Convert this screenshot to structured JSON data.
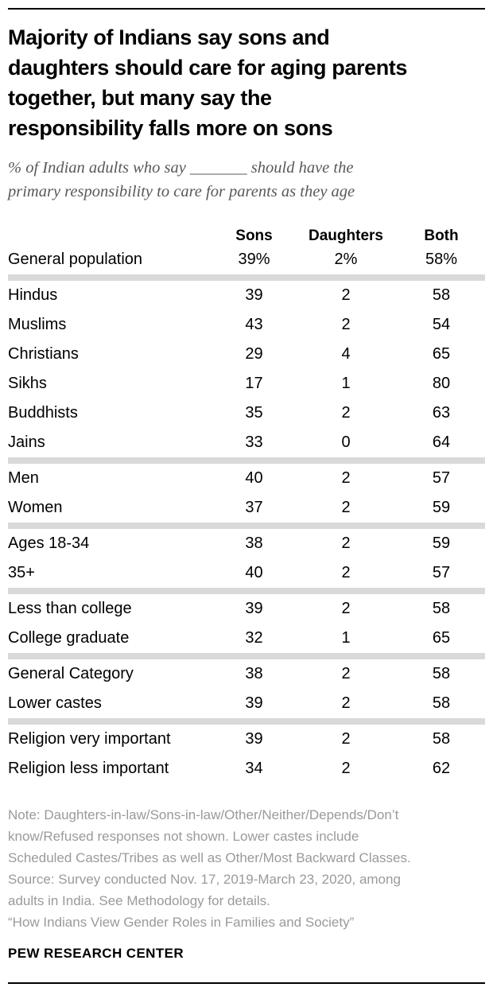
{
  "colors": {
    "text": "#000000",
    "subtitle_gray": "#595959",
    "note_gray": "#9a9a9a",
    "separator_gray": "#d9d9d9",
    "rule_black": "#000000",
    "background": "#ffffff"
  },
  "header": {
    "title_lines": [
      "Majority of Indians say sons and",
      "daughters should care for aging parents",
      "together, but many say the",
      "responsibility falls more on sons"
    ],
    "subtitle_lines": [
      "% of Indian adults who say _______ should have the",
      "primary responsibility to care for parents as they age"
    ]
  },
  "table": {
    "column_headers": [
      "Sons",
      "Daughters",
      "Both"
    ],
    "groups": [
      {
        "rows": [
          {
            "label": "General population",
            "values": [
              "39%",
              "2%",
              "58%"
            ]
          }
        ]
      },
      {
        "rows": [
          {
            "label": "Hindus",
            "values": [
              "39",
              "2",
              "58"
            ]
          },
          {
            "label": "Muslims",
            "values": [
              "43",
              "2",
              "54"
            ]
          },
          {
            "label": "Christians",
            "values": [
              "29",
              "4",
              "65"
            ]
          },
          {
            "label": "Sikhs",
            "values": [
              "17",
              "1",
              "80"
            ]
          },
          {
            "label": "Buddhists",
            "values": [
              "35",
              "2",
              "63"
            ]
          },
          {
            "label": "Jains",
            "values": [
              "33",
              "0",
              "64"
            ]
          }
        ]
      },
      {
        "rows": [
          {
            "label": "Men",
            "values": [
              "40",
              "2",
              "57"
            ]
          },
          {
            "label": "Women",
            "values": [
              "37",
              "2",
              "59"
            ]
          }
        ]
      },
      {
        "rows": [
          {
            "label": "Ages 18-34",
            "values": [
              "38",
              "2",
              "59"
            ]
          },
          {
            "label": "35+",
            "values": [
              "40",
              "2",
              "57"
            ]
          }
        ]
      },
      {
        "rows": [
          {
            "label": "Less than college",
            "values": [
              "39",
              "2",
              "58"
            ]
          },
          {
            "label": "College graduate",
            "values": [
              "32",
              "1",
              "65"
            ]
          }
        ]
      },
      {
        "rows": [
          {
            "label": "General Category",
            "values": [
              "38",
              "2",
              "58"
            ]
          },
          {
            "label": "Lower castes",
            "values": [
              "39",
              "2",
              "58"
            ]
          }
        ]
      },
      {
        "rows": [
          {
            "label": "Religion very important",
            "values": [
              "39",
              "2",
              "58"
            ]
          },
          {
            "label": "Religion less important",
            "values": [
              "34",
              "2",
              "62"
            ]
          }
        ]
      }
    ]
  },
  "footer": {
    "note_lines": [
      "Note: Daughters-in-law/Sons-in-law/Other/Neither/Depends/Don’t",
      "know/Refused responses not shown. Lower castes include",
      "Scheduled Castes/Tribes as well as Other/Most Backward Classes.",
      "Source: Survey conducted Nov. 17, 2019-March 23, 2020, among",
      "adults in India. See Methodology for details.",
      "“How Indians View Gender Roles in Families and Society”"
    ],
    "brand": "PEW RESEARCH CENTER"
  },
  "chart_data": {
    "type": "table",
    "title": "Majority of Indians say sons and daughters should care for aging parents together, but many say the responsibility falls more on sons",
    "subtitle": "% of Indian adults who say _______ should have the primary responsibility to care for parents as they age",
    "columns": [
      "Sons",
      "Daughters",
      "Both"
    ],
    "categories": [
      "General population",
      "Hindus",
      "Muslims",
      "Christians",
      "Sikhs",
      "Buddhists",
      "Jains",
      "Men",
      "Women",
      "Ages 18-34",
      "35+",
      "Less than college",
      "College graduate",
      "General Category",
      "Lower castes",
      "Religion very important",
      "Religion less important"
    ],
    "series": [
      {
        "name": "Sons",
        "values": [
          39,
          39,
          43,
          29,
          17,
          35,
          33,
          40,
          37,
          38,
          40,
          39,
          32,
          38,
          39,
          39,
          34
        ]
      },
      {
        "name": "Daughters",
        "values": [
          2,
          2,
          2,
          4,
          1,
          2,
          0,
          2,
          2,
          2,
          2,
          2,
          1,
          2,
          2,
          2,
          2
        ]
      },
      {
        "name": "Both",
        "values": [
          58,
          58,
          54,
          65,
          80,
          63,
          64,
          57,
          59,
          59,
          57,
          58,
          65,
          58,
          58,
          58,
          62
        ]
      }
    ],
    "value_unit": "%",
    "legend_position": "none",
    "grid": false
  }
}
